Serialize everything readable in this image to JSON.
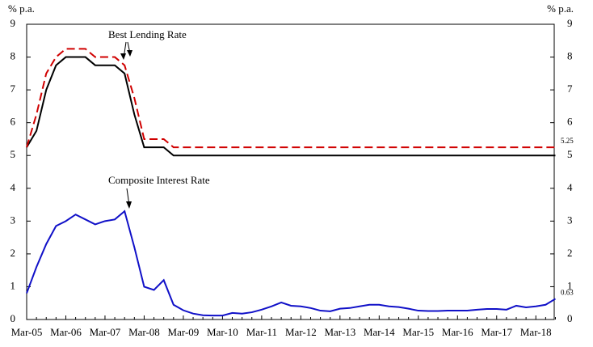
{
  "chart_data": {
    "type": "line",
    "y_label": "% p.a.",
    "y2_label": "% p.a.",
    "annotations": [
      "Best Lending Rate",
      "Composite Interest Rate"
    ],
    "categories": [
      "Mar-05",
      "Jun-05",
      "Sep-05",
      "Dec-05",
      "Mar-06",
      "Jun-06",
      "Sep-06",
      "Dec-06",
      "Mar-07",
      "Jun-07",
      "Sep-07",
      "Dec-07",
      "Mar-08",
      "Jun-08",
      "Sep-08",
      "Dec-08",
      "Mar-09",
      "Jun-09",
      "Sep-09",
      "Dec-09",
      "Mar-10",
      "Jun-10",
      "Sep-10",
      "Dec-10",
      "Mar-11",
      "Jun-11",
      "Sep-11",
      "Dec-11",
      "Mar-12",
      "Jun-12",
      "Sep-12",
      "Dec-12",
      "Mar-13",
      "Jun-13",
      "Sep-13",
      "Dec-13",
      "Mar-14",
      "Jun-14",
      "Sep-14",
      "Dec-14",
      "Mar-15",
      "Jun-15",
      "Sep-15",
      "Dec-15",
      "Mar-16",
      "Jun-16",
      "Sep-16",
      "Dec-16",
      "Mar-17",
      "Jun-17",
      "Sep-17",
      "Dec-17",
      "Mar-18",
      "Jun-18",
      "Sep-18"
    ],
    "xticks": [
      "Mar-05",
      "Mar-06",
      "Mar-07",
      "Mar-08",
      "Mar-09",
      "Mar-10",
      "Mar-11",
      "Mar-12",
      "Mar-13",
      "Mar-14",
      "Mar-15",
      "Mar-16",
      "Mar-17",
      "Mar-18"
    ],
    "series": [
      {
        "color": "#000000",
        "dash": false,
        "values": [
          5.25,
          5.75,
          7.0,
          7.75,
          8.0,
          8.0,
          8.0,
          7.75,
          7.75,
          7.75,
          7.5,
          6.25,
          5.25,
          5.25,
          5.25,
          5.0,
          5.0,
          5.0,
          5.0,
          5.0,
          5.0,
          5.0,
          5.0,
          5.0,
          5.0,
          5.0,
          5.0,
          5.0,
          5.0,
          5.0,
          5.0,
          5.0,
          5.0,
          5.0,
          5.0,
          5.0,
          5.0,
          5.0,
          5.0,
          5.0,
          5.0,
          5.0,
          5.0,
          5.0,
          5.0,
          5.0,
          5.0,
          5.0,
          5.0,
          5.0,
          5.0,
          5.0,
          5.0,
          5.0,
          5.0
        ]
      },
      {
        "color": "#d00000",
        "dash": true,
        "values": [
          5.25,
          6.25,
          7.5,
          8.0,
          8.25,
          8.25,
          8.25,
          8.0,
          8.0,
          8.0,
          7.75,
          6.75,
          5.5,
          5.5,
          5.5,
          5.25,
          5.25,
          5.25,
          5.25,
          5.25,
          5.25,
          5.25,
          5.25,
          5.25,
          5.25,
          5.25,
          5.25,
          5.25,
          5.25,
          5.25,
          5.25,
          5.25,
          5.25,
          5.25,
          5.25,
          5.25,
          5.25,
          5.25,
          5.25,
          5.25,
          5.25,
          5.25,
          5.25,
          5.25,
          5.25,
          5.25,
          5.25,
          5.25,
          5.25,
          5.25,
          5.25,
          5.25,
          5.25,
          5.25,
          5.25
        ],
        "value_labels": [
          null,
          null,
          null,
          null,
          null,
          null,
          null,
          null,
          null,
          null,
          null,
          null,
          null,
          null,
          null,
          null,
          null,
          null,
          null,
          null,
          null,
          null,
          null,
          null,
          null,
          null,
          null,
          null,
          null,
          null,
          null,
          null,
          null,
          null,
          null,
          null,
          null,
          null,
          null,
          null,
          null,
          null,
          null,
          null,
          null,
          null,
          null,
          null,
          null,
          null,
          null,
          null,
          null,
          null,
          "5.25"
        ]
      },
      {
        "color": "#1010c8",
        "dash": false,
        "values": [
          0.8,
          1.6,
          2.3,
          2.85,
          3.0,
          3.2,
          3.05,
          2.9,
          3.0,
          3.05,
          3.3,
          2.2,
          1.0,
          0.9,
          1.2,
          0.45,
          0.28,
          0.18,
          0.13,
          0.12,
          0.12,
          0.2,
          0.18,
          0.22,
          0.3,
          0.4,
          0.52,
          0.42,
          0.4,
          0.35,
          0.27,
          0.25,
          0.33,
          0.35,
          0.4,
          0.45,
          0.45,
          0.4,
          0.38,
          0.33,
          0.27,
          0.26,
          0.26,
          0.27,
          0.27,
          0.27,
          0.3,
          0.32,
          0.32,
          0.3,
          0.42,
          0.37,
          0.4,
          0.45,
          0.63
        ],
        "value_labels": [
          null,
          null,
          null,
          null,
          null,
          null,
          null,
          null,
          null,
          null,
          null,
          null,
          null,
          null,
          null,
          null,
          null,
          null,
          null,
          null,
          null,
          null,
          null,
          null,
          null,
          null,
          null,
          null,
          null,
          null,
          null,
          null,
          null,
          null,
          null,
          null,
          null,
          null,
          null,
          null,
          null,
          null,
          null,
          null,
          null,
          null,
          null,
          null,
          null,
          null,
          null,
          null,
          null,
          null,
          "0.63"
        ]
      }
    ],
    "ylim": [
      0,
      9
    ],
    "yticks": [
      0,
      1,
      2,
      3,
      4,
      5,
      6,
      7,
      8,
      9
    ],
    "y2lim": [
      0,
      9
    ],
    "y2ticks": [
      0,
      1,
      2,
      3,
      4,
      5,
      6,
      7,
      8,
      9
    ]
  }
}
